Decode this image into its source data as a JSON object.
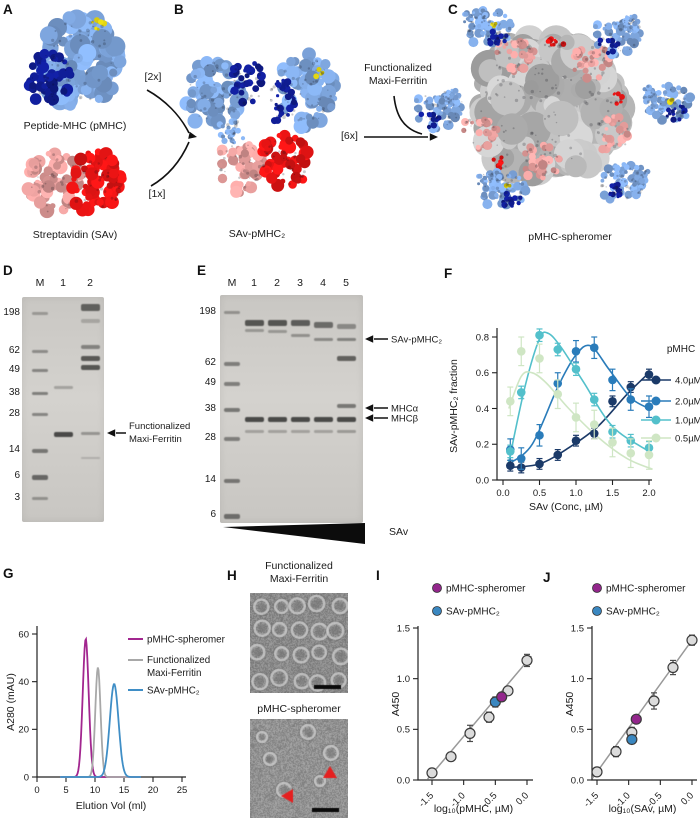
{
  "letters": {
    "A": "A",
    "B": "B",
    "C": "C",
    "D": "D",
    "E": "E",
    "F": "F",
    "G": "G",
    "H": "H",
    "I": "I",
    "J": "J"
  },
  "panelA": {
    "pmhc_label": "Peptide-MHC (pMHC)",
    "sav_label": "Streptavidin (SAv)"
  },
  "panelB": {
    "stoich_pmhc": "[2x]",
    "stoich_sav": "[1x]",
    "product": "SAv-pMHC₂"
  },
  "panelC": {
    "reagent_lines": [
      "Functionalized",
      "Maxi-Ferritin"
    ],
    "stoich": "[6x]",
    "product": "pMHC-spheromer"
  },
  "panelD": {
    "lanes": [
      "M",
      "1",
      "2"
    ],
    "markers": [
      "198",
      "62",
      "49",
      "38",
      "28",
      "14",
      "6",
      "3"
    ],
    "marker_fy": [
      0.071,
      0.24,
      0.324,
      0.427,
      0.52,
      0.68,
      0.796,
      0.893
    ],
    "marker_dark": [
      0.35,
      0.45,
      0.5,
      0.55,
      0.5,
      0.6,
      0.7,
      0.4
    ],
    "marker_h": [
      3,
      3,
      3,
      3,
      3,
      4,
      5,
      3
    ],
    "bands": [
      [
        1,
        0.4,
        0.3,
        3
      ],
      [
        1,
        0.604,
        0.88,
        5
      ],
      [
        2,
        0.036,
        0.72,
        7
      ],
      [
        2,
        0.1,
        0.25,
        4
      ],
      [
        2,
        0.218,
        0.5,
        4
      ],
      [
        2,
        0.267,
        0.78,
        5
      ],
      [
        2,
        0.307,
        0.8,
        5
      ],
      [
        2,
        0.604,
        0.38,
        3
      ],
      [
        2,
        0.716,
        0.2,
        2
      ]
    ],
    "annotation_lines": [
      "Functionalized",
      "Maxi-Ferritin"
    ]
  },
  "panelE": {
    "lanes": [
      "M",
      "1",
      "2",
      "3",
      "4",
      "5"
    ],
    "markers": [
      "198",
      "62",
      "49",
      "38",
      "28",
      "14",
      "6"
    ],
    "marker_fy": [
      0.075,
      0.298,
      0.386,
      0.5,
      0.627,
      0.811,
      0.965
    ],
    "marker_dark": [
      0.4,
      0.55,
      0.55,
      0.6,
      0.55,
      0.6,
      0.65
    ],
    "marker_h": [
      3,
      4,
      4,
      4,
      4,
      4,
      5
    ],
    "bands": [
      [
        1,
        0.114,
        0.8,
        6
      ],
      [
        1,
        0.155,
        0.35,
        3
      ],
      [
        1,
        0.539,
        0.88,
        5
      ],
      [
        1,
        0.596,
        0.3,
        3
      ],
      [
        2,
        0.114,
        0.8,
        6
      ],
      [
        2,
        0.16,
        0.35,
        3
      ],
      [
        2,
        0.539,
        0.88,
        5
      ],
      [
        2,
        0.596,
        0.3,
        3
      ],
      [
        3,
        0.114,
        0.75,
        6
      ],
      [
        3,
        0.175,
        0.4,
        3
      ],
      [
        3,
        0.539,
        0.88,
        5
      ],
      [
        3,
        0.596,
        0.3,
        3
      ],
      [
        4,
        0.123,
        0.65,
        6
      ],
      [
        4,
        0.193,
        0.45,
        3
      ],
      [
        4,
        0.539,
        0.88,
        5
      ],
      [
        4,
        0.596,
        0.3,
        3
      ],
      [
        5,
        0.13,
        0.45,
        5
      ],
      [
        5,
        0.193,
        0.5,
        3
      ],
      [
        5,
        0.272,
        0.72,
        5
      ],
      [
        5,
        0.482,
        0.58,
        4
      ],
      [
        5,
        0.539,
        0.88,
        5
      ],
      [
        5,
        0.596,
        0.35,
        3
      ]
    ],
    "annotations": [
      "SAv-pMHC₂",
      "MHCα",
      "MHCβ"
    ],
    "wedge_label": "SAv"
  },
  "panelH": {
    "title_top_lines": [
      "Functionalized",
      "Maxi-Ferritin"
    ],
    "title_bottom": "pMHC-spheromer"
  },
  "chart_data": [
    {
      "id": "F",
      "type": "line",
      "xlabel": "SAv (Conc, µM)",
      "ylabel": "SAv-pMHC₂ fraction",
      "xlim": [
        0,
        2.0
      ],
      "ylim": [
        0,
        0.8
      ],
      "xticks": [
        "0.0",
        "0.5",
        "1.0",
        "1.5",
        "2.0"
      ],
      "yticks": [
        "0.0",
        "0.2",
        "0.4",
        "0.6",
        "0.8"
      ],
      "legend_title": "pMHC",
      "legend_position": "right",
      "x": [
        0.1,
        0.25,
        0.5,
        0.75,
        1.0,
        1.25,
        1.5,
        1.75,
        2.0
      ],
      "series": [
        {
          "name": "4.0µM",
          "color": "#1b3a68",
          "err": 0.03,
          "values": [
            0.08,
            0.07,
            0.09,
            0.14,
            0.22,
            0.26,
            0.44,
            0.52,
            0.59
          ],
          "fit": [
            [
              0.08,
              0.07
            ],
            [
              0.5,
              0.09
            ],
            [
              0.9,
              0.18
            ],
            [
              1.3,
              0.3
            ],
            [
              1.7,
              0.48
            ],
            [
              2.0,
              0.6
            ]
          ]
        },
        {
          "name": "2.0µM",
          "color": "#2a7cba",
          "err": 0.06,
          "values": [
            0.17,
            0.12,
            0.25,
            0.54,
            0.72,
            0.74,
            0.56,
            0.45,
            0.41
          ],
          "fit": [
            [
              0.08,
              0.09
            ],
            [
              0.4,
              0.2
            ],
            [
              0.75,
              0.52
            ],
            [
              1.0,
              0.7
            ],
            [
              1.2,
              0.75
            ],
            [
              1.45,
              0.62
            ],
            [
              1.75,
              0.46
            ],
            [
              2.0,
              0.4
            ]
          ]
        },
        {
          "name": "1.0µM",
          "color": "#53c0cb",
          "err": 0.035,
          "values": [
            0.16,
            0.49,
            0.81,
            0.73,
            0.62,
            0.45,
            0.27,
            0.22,
            0.18
          ],
          "fit": [
            [
              0.08,
              0.1
            ],
            [
              0.3,
              0.52
            ],
            [
              0.5,
              0.79
            ],
            [
              0.62,
              0.82
            ],
            [
              0.8,
              0.74
            ],
            [
              1.1,
              0.55
            ],
            [
              1.5,
              0.3
            ],
            [
              2.0,
              0.16
            ]
          ]
        },
        {
          "name": "0.5µM",
          "color": "#cfe6c4",
          "err": 0.08,
          "values": [
            0.44,
            0.72,
            0.68,
            0.48,
            0.35,
            0.31,
            0.21,
            0.15,
            0.14
          ],
          "fit": [
            [
              0.08,
              0.4
            ],
            [
              0.25,
              0.58
            ],
            [
              0.4,
              0.6
            ],
            [
              0.6,
              0.54
            ],
            [
              0.9,
              0.4
            ],
            [
              1.3,
              0.24
            ],
            [
              1.7,
              0.12
            ],
            [
              2.05,
              0.06
            ]
          ]
        }
      ]
    },
    {
      "id": "G",
      "type": "line",
      "xlabel": "Elution Vol (ml)",
      "ylabel": "A280 (mAU)",
      "xlim": [
        0,
        25
      ],
      "ylim": [
        0,
        60
      ],
      "xticks": [
        "0",
        "5",
        "10",
        "15",
        "20",
        "25"
      ],
      "yticks": [
        "0",
        "20",
        "40",
        "60"
      ],
      "series": [
        {
          "name": "pMHC-spheromer",
          "legend_lines": [
            "pMHC-spheromer"
          ],
          "color": "#a2268f",
          "peak_center": 8.4,
          "peak_height": 58,
          "peak_sigma": 0.52
        },
        {
          "name": "Functionalized Maxi-Ferritin",
          "legend_lines": [
            "Functionalized",
            "Maxi-Ferritin"
          ],
          "color": "#a8a8a8",
          "peak_center": 10.5,
          "peak_height": 46,
          "peak_sigma": 0.45
        },
        {
          "name": "SAv-pMHC₂",
          "legend_lines": [
            "SAv-pMHC₂"
          ],
          "color": "#3f8ec6",
          "peak_center": 13.3,
          "peak_height": 39,
          "peak_sigma": 0.75
        }
      ]
    },
    {
      "id": "I",
      "type": "scatter",
      "xlabel": "log₁₀(pMHC, µM)",
      "ylabel": "A450",
      "xlim": [
        -1.5,
        0
      ],
      "ylim": [
        0,
        1.5
      ],
      "xticks": [
        "-1.5",
        "-1.0",
        "-0.5",
        "0.0"
      ],
      "yticks": [
        "0.0",
        "0.5",
        "1.0",
        "1.5"
      ],
      "legend": [
        {
          "name": "pMHC-spheromer",
          "color": "#93268c"
        },
        {
          "name": "SAv-pMHC₂",
          "color": "#3a87c0"
        }
      ],
      "points": [
        {
          "series": "titration",
          "x": -1.5,
          "y": 0.07,
          "err": 0.03
        },
        {
          "series": "titration",
          "x": -1.2,
          "y": 0.23,
          "err": 0.04
        },
        {
          "series": "titration",
          "x": -0.9,
          "y": 0.46,
          "err": 0.08
        },
        {
          "series": "titration",
          "x": -0.6,
          "y": 0.62,
          "err": 0.05
        },
        {
          "series": "titration",
          "x": -0.3,
          "y": 0.88,
          "err": 0.04
        },
        {
          "series": "titration",
          "x": 0.0,
          "y": 1.18,
          "err": 0.06
        },
        {
          "series": "SAv-pMHC₂",
          "x": -0.5,
          "y": 0.77,
          "err": 0.05
        },
        {
          "series": "pMHC-spheromer",
          "x": -0.4,
          "y": 0.82,
          "err": 0.04
        }
      ],
      "fit_line": {
        "slope": 0.74,
        "intercept": 1.17,
        "domain": [
          -1.57,
          0.07
        ]
      }
    },
    {
      "id": "J",
      "type": "scatter",
      "xlabel": "log₁₀(SAv, µM)",
      "ylabel": "A450",
      "xlim": [
        -1.5,
        0
      ],
      "ylim": [
        0,
        1.5
      ],
      "xticks": [
        "-1.5",
        "-1.0",
        "-0.5",
        "0.0"
      ],
      "yticks": [
        "0.0",
        "0.5",
        "1.0",
        "1.5"
      ],
      "legend": [
        {
          "name": "pMHC-spheromer",
          "color": "#93268c"
        },
        {
          "name": "SAv-pMHC₂",
          "color": "#3a87c0"
        }
      ],
      "points": [
        {
          "series": "titration",
          "x": -1.5,
          "y": 0.08,
          "err": 0.04
        },
        {
          "series": "titration",
          "x": -1.2,
          "y": 0.28,
          "err": 0.05
        },
        {
          "series": "titration",
          "x": -0.95,
          "y": 0.47,
          "err": 0.05
        },
        {
          "series": "titration",
          "x": -0.6,
          "y": 0.78,
          "err": 0.08
        },
        {
          "series": "titration",
          "x": -0.3,
          "y": 1.11,
          "err": 0.07
        },
        {
          "series": "titration",
          "x": 0.0,
          "y": 1.38,
          "err": 0.05
        },
        {
          "series": "SAv-pMHC₂",
          "x": -0.95,
          "y": 0.4,
          "err": 0.04
        },
        {
          "series": "pMHC-spheromer",
          "x": -0.88,
          "y": 0.6,
          "err": 0.04
        }
      ],
      "fit_line": {
        "slope": 0.867,
        "intercept": 1.38,
        "domain": [
          -1.57,
          0.04
        ]
      }
    }
  ]
}
